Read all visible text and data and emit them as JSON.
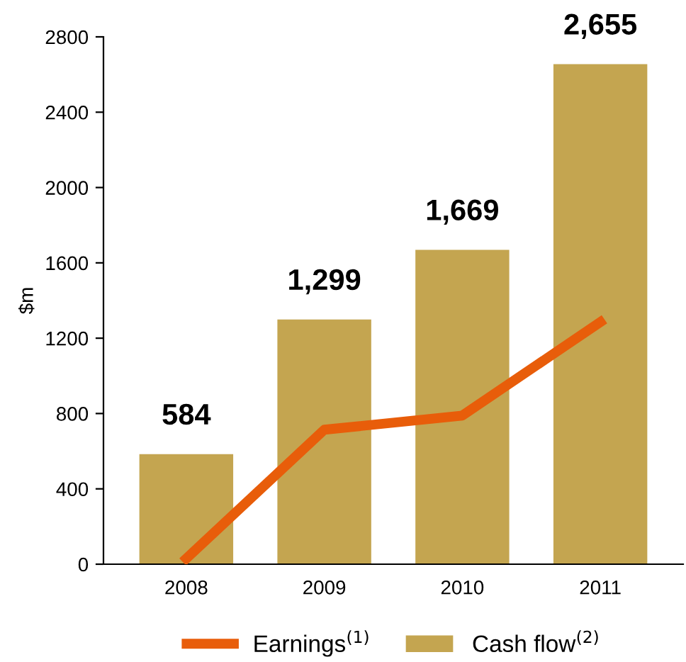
{
  "chart_data": {
    "type": "bar",
    "ylabel": "$m",
    "categories": [
      "2008",
      "2009",
      "2010",
      "2011"
    ],
    "series": [
      {
        "name": "Earnings$^{(1)}$",
        "type": "line",
        "color": "#e85d0a",
        "values": [
          30,
          714,
          789,
          1286
        ]
      },
      {
        "name": "Cash flow$^{(2)}$",
        "color": "#c4a550",
        "values": [
          584,
          1299,
          1669,
          2655
        ],
        "value_labels": [
          "584",
          "1,299",
          "1,669",
          "2,655"
        ]
      }
    ],
    "ylim": [
      0,
      2800
    ],
    "yticks": [
      0,
      400,
      800,
      1200,
      1600,
      2000,
      2400,
      2800
    ],
    "grid": false,
    "legend": "bottom"
  }
}
